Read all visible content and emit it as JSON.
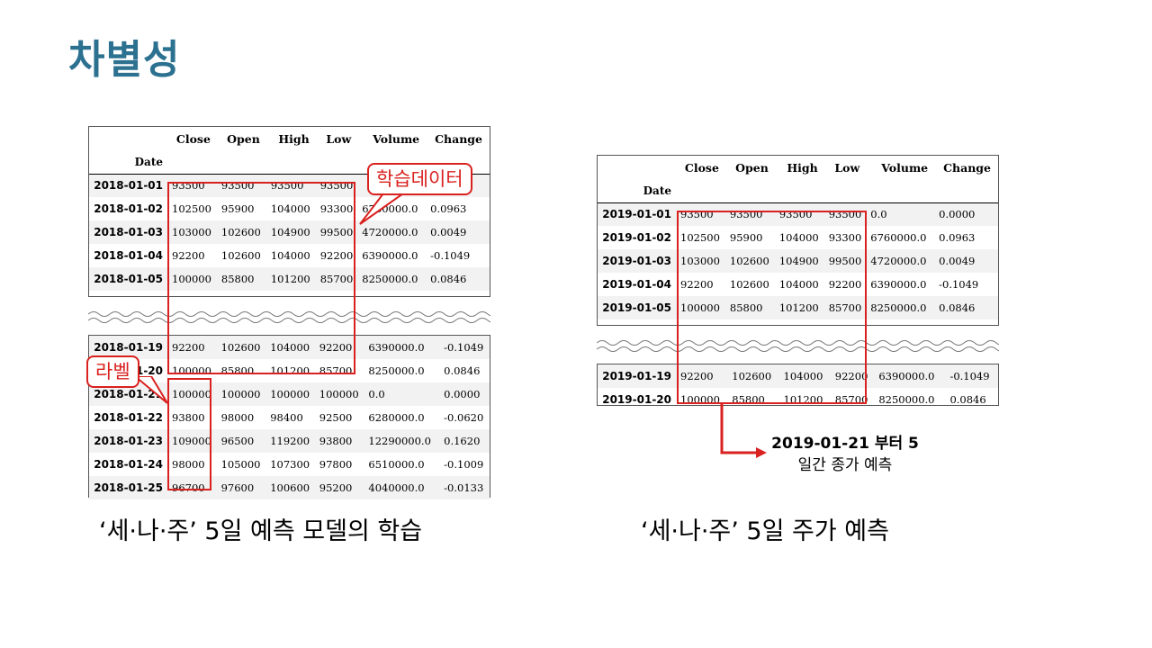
{
  "title": "차별성",
  "columns": [
    "Close",
    "Open",
    "High",
    "Low",
    "Volume",
    "Change"
  ],
  "index_name": "Date",
  "left": {
    "top_rows": [
      [
        "2018-01-01",
        "93500",
        "93500",
        "93500",
        "93500",
        "",
        ""
      ],
      [
        "2018-01-02",
        "102500",
        "95900",
        "104000",
        "93300",
        "6760000.0",
        "0.0963"
      ],
      [
        "2018-01-03",
        "103000",
        "102600",
        "104900",
        "99500",
        "4720000.0",
        "0.0049"
      ],
      [
        "2018-01-04",
        "92200",
        "102600",
        "104000",
        "92200",
        "6390000.0",
        "-0.1049"
      ],
      [
        "2018-01-05",
        "100000",
        "85800",
        "101200",
        "85700",
        "8250000.0",
        "0.0846"
      ]
    ],
    "bottom_rows": [
      [
        "2018-01-19",
        "92200",
        "102600",
        "104000",
        "92200",
        "6390000.0",
        "-0.1049"
      ],
      [
        "2018-01-20",
        "100000",
        "85800",
        "101200",
        "85700",
        "8250000.0",
        "0.0846"
      ],
      [
        "2018-01-21",
        "100000",
        "100000",
        "100000",
        "100000",
        "0.0",
        "0.0000"
      ],
      [
        "2018-01-22",
        "93800",
        "98000",
        "98400",
        "92500",
        "6280000.0",
        "-0.0620"
      ],
      [
        "2018-01-23",
        "109000",
        "96500",
        "119200",
        "93800",
        "12290000.0",
        "0.1620"
      ],
      [
        "2018-01-24",
        "98000",
        "105000",
        "107300",
        "97800",
        "6510000.0",
        "-0.1009"
      ],
      [
        "2018-01-25",
        "96700",
        "97600",
        "100600",
        "95200",
        "4040000.0",
        "-0.0133"
      ]
    ],
    "callout_train": "학습데이터",
    "callout_label": "라벨",
    "caption": "‘세·나·주’ 5일 예측 모델의 학습"
  },
  "right": {
    "top_rows": [
      [
        "2019-01-01",
        "93500",
        "93500",
        "93500",
        "93500",
        "0.0",
        "0.0000"
      ],
      [
        "2019-01-02",
        "102500",
        "95900",
        "104000",
        "93300",
        "6760000.0",
        "0.0963"
      ],
      [
        "2019-01-03",
        "103000",
        "102600",
        "104900",
        "99500",
        "4720000.0",
        "0.0049"
      ],
      [
        "2019-01-04",
        "92200",
        "102600",
        "104000",
        "92200",
        "6390000.0",
        "-0.1049"
      ],
      [
        "2019-01-05",
        "100000",
        "85800",
        "101200",
        "85700",
        "8250000.0",
        "0.0846"
      ]
    ],
    "bottom_rows": [
      [
        "2019-01-19",
        "92200",
        "102600",
        "104000",
        "92200",
        "6390000.0",
        "-0.1049"
      ],
      [
        "2019-01-20",
        "100000",
        "85800",
        "101200",
        "85700",
        "8250000.0",
        "0.0846"
      ]
    ],
    "note_line1_bold": "2019-01-21 부터 5",
    "note_line2": "일간 종가 예측",
    "caption": "‘세·나·주’ 5일 주가 예측"
  },
  "colors": {
    "title": "#2d7191",
    "highlight": "#d9211f"
  }
}
